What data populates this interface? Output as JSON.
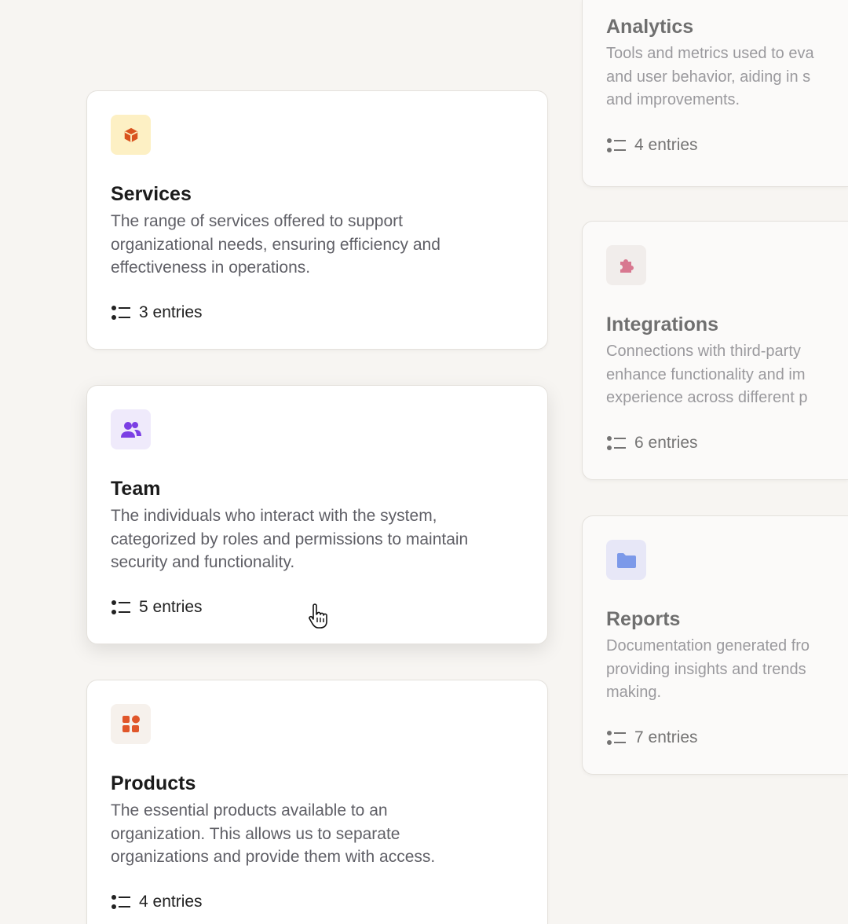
{
  "cards_left": [
    {
      "title": "Services",
      "description": [
        "The range of services offered to support",
        "organizational needs, ensuring efficiency and",
        "effectiveness in operations."
      ],
      "entries": "3 entries",
      "icon": "cube-icon",
      "icon_color": "#d9531e",
      "icon_bg": "#fdf0c4"
    },
    {
      "title": "Team",
      "description": [
        "The individuals who interact with the system,",
        "categorized by roles and permissions to maintain",
        "security and functionality."
      ],
      "entries": "5 entries",
      "icon": "users-icon",
      "icon_color": "#7b3fe4",
      "icon_bg": "#efeafb"
    },
    {
      "title": "Products",
      "description": [
        "The essential products available to an",
        "organization. This allows us to separate",
        "organizations and provide them with access."
      ],
      "entries": "4 entries",
      "icon": "grid-shapes-icon",
      "icon_color": "#e0562a",
      "icon_bg": "#f6f1ec"
    }
  ],
  "cards_right": [
    {
      "title": "Analytics",
      "description": [
        "Tools and metrics used to eva",
        "and user behavior, aiding in s",
        "and improvements."
      ],
      "entries": "4 entries"
    },
    {
      "title": "Integrations",
      "description": [
        "Connections with third-party",
        "enhance functionality and im",
        "experience across different p"
      ],
      "entries": "6 entries",
      "icon": "puzzle-icon",
      "icon_color": "#d0506e",
      "icon_bg": "#f3efee"
    },
    {
      "title": "Reports",
      "description": [
        "Documentation generated fro",
        "providing insights and trends",
        "making."
      ],
      "entries": "7 entries",
      "icon": "folder-icon",
      "icon_color": "#5b82e8",
      "icon_bg": "#e8e8f8"
    }
  ]
}
